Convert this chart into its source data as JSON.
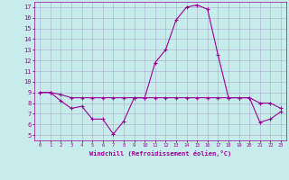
{
  "xlabel": "Windchill (Refroidissement éolien,°C)",
  "background_color": "#c8ecec",
  "grid_color": "#aaaacc",
  "line_color": "#990099",
  "xlim": [
    -0.5,
    23.5
  ],
  "ylim": [
    4.5,
    17.5
  ],
  "yticks": [
    5,
    6,
    7,
    8,
    9,
    10,
    11,
    12,
    13,
    14,
    15,
    16,
    17
  ],
  "xticks": [
    0,
    1,
    2,
    3,
    4,
    5,
    6,
    7,
    8,
    9,
    10,
    11,
    12,
    13,
    14,
    15,
    16,
    17,
    18,
    19,
    20,
    21,
    22,
    23
  ],
  "series1_x": [
    0,
    1,
    2,
    3,
    4,
    5,
    6,
    7,
    8,
    9,
    10,
    11,
    12,
    13,
    14,
    15,
    16,
    17,
    18,
    19,
    20,
    21,
    22,
    23
  ],
  "series1_y": [
    9.0,
    9.0,
    8.2,
    7.5,
    7.7,
    6.5,
    6.5,
    5.1,
    6.3,
    8.5,
    8.5,
    11.8,
    13.0,
    15.8,
    17.0,
    17.2,
    16.8,
    12.5,
    8.5,
    8.5,
    8.5,
    6.2,
    6.5,
    7.2
  ],
  "series2_x": [
    0,
    1,
    2,
    3,
    4,
    5,
    6,
    7,
    8,
    9,
    10,
    11,
    12,
    13,
    14,
    15,
    16,
    17,
    18,
    19,
    20,
    21,
    22,
    23
  ],
  "series2_y": [
    9.0,
    9.0,
    8.8,
    8.5,
    8.5,
    8.5,
    8.5,
    8.5,
    8.5,
    8.5,
    8.5,
    8.5,
    8.5,
    8.5,
    8.5,
    8.5,
    8.5,
    8.5,
    8.5,
    8.5,
    8.5,
    8.0,
    8.0,
    7.5
  ]
}
